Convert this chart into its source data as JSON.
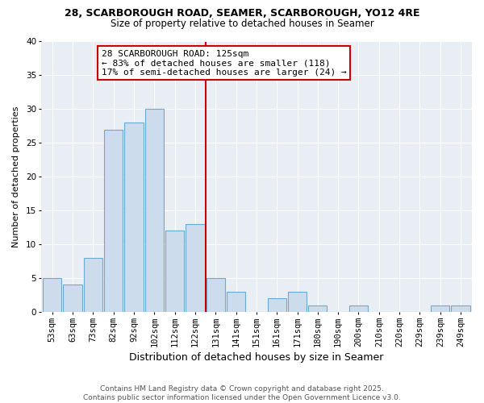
{
  "title1": "28, SCARBOROUGH ROAD, SEAMER, SCARBOROUGH, YO12 4RE",
  "title2": "Size of property relative to detached houses in Seamer",
  "xlabel": "Distribution of detached houses by size in Seamer",
  "ylabel": "Number of detached properties",
  "bin_labels": [
    "53sqm",
    "63sqm",
    "73sqm",
    "82sqm",
    "92sqm",
    "102sqm",
    "112sqm",
    "122sqm",
    "131sqm",
    "141sqm",
    "151sqm",
    "161sqm",
    "171sqm",
    "180sqm",
    "190sqm",
    "200sqm",
    "210sqm",
    "220sqm",
    "229sqm",
    "239sqm",
    "249sqm"
  ],
  "bin_values": [
    5,
    4,
    8,
    27,
    28,
    30,
    12,
    13,
    5,
    3,
    0,
    2,
    3,
    1,
    0,
    1,
    0,
    0,
    0,
    1,
    1
  ],
  "bar_color": "#ccdcec",
  "bar_edge_color": "#6aaad4",
  "ylim": [
    0,
    40
  ],
  "yticks": [
    0,
    5,
    10,
    15,
    20,
    25,
    30,
    35,
    40
  ],
  "red_line_x": 7.5,
  "annotation_title": "28 SCARBOROUGH ROAD: 125sqm",
  "annotation_line1": "← 83% of detached houses are smaller (118)",
  "annotation_line2": "17% of semi-detached houses are larger (24) →",
  "annotation_box_facecolor": "#ffffff",
  "annotation_box_edgecolor": "#cc0000",
  "footer1": "Contains HM Land Registry data © Crown copyright and database right 2025.",
  "footer2": "Contains public sector information licensed under the Open Government Licence v3.0.",
  "fig_facecolor": "#ffffff",
  "ax_facecolor": "#e8eef4",
  "grid_color": "#ffffff",
  "title1_fontsize": 9,
  "title2_fontsize": 8.5,
  "xlabel_fontsize": 9,
  "ylabel_fontsize": 8,
  "tick_fontsize": 7.5,
  "annotation_fontsize": 8,
  "footer_fontsize": 6.5
}
